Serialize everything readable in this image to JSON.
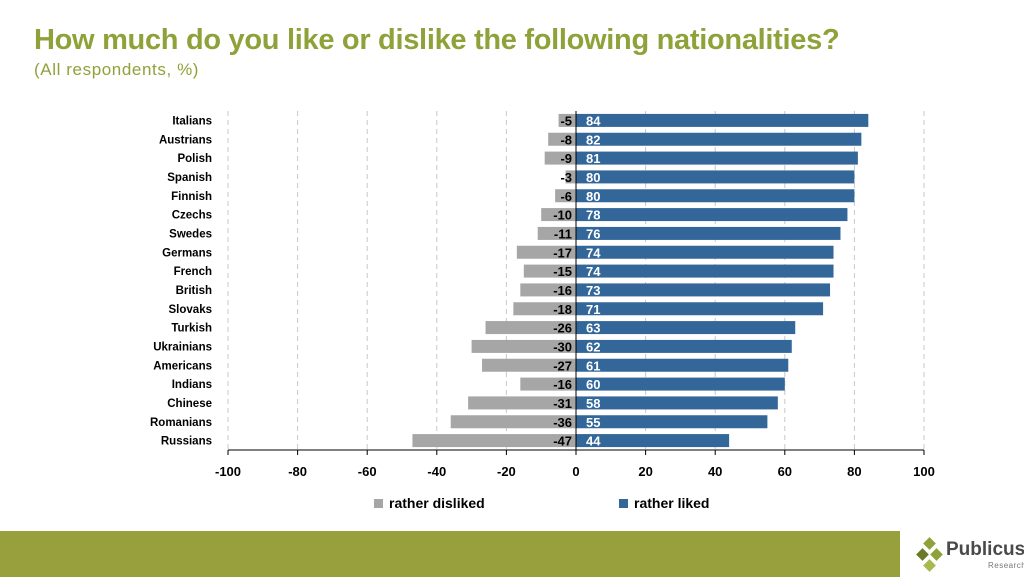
{
  "header": {
    "title": "How much do you like or dislike the following nationalities?",
    "subtitle": "(All respondents, %)"
  },
  "chart_data": {
    "type": "bar",
    "orientation": "horizontal",
    "stacked": "diverging",
    "title": "How much do you like or dislike the following nationalities?",
    "subtitle": "(All respondents, %)",
    "categories": [
      "Italians",
      "Austrians",
      "Polish",
      "Spanish",
      "Finnish",
      "Czechs",
      "Swedes",
      "Germans",
      "French",
      "British",
      "Slovaks",
      "Turkish",
      "Ukrainians",
      "Americans",
      "Indians",
      "Chinese",
      "Romanians",
      "Russians"
    ],
    "series": [
      {
        "name": "rather disliked",
        "color": "#a6a6a6",
        "values": [
          -5,
          -8,
          -9,
          -3,
          -6,
          -10,
          -11,
          -17,
          -15,
          -16,
          -18,
          -26,
          -30,
          -27,
          -16,
          -31,
          -36,
          -47
        ]
      },
      {
        "name": "rather liked",
        "color": "#336699",
        "values": [
          84,
          82,
          81,
          80,
          80,
          78,
          76,
          74,
          74,
          73,
          71,
          63,
          62,
          61,
          60,
          58,
          55,
          44
        ]
      }
    ],
    "xlim": [
      -100,
      100
    ],
    "xticks": [
      -100,
      -80,
      -60,
      -40,
      -20,
      0,
      20,
      40,
      60,
      80,
      100
    ],
    "grid": "vertical dashed",
    "legend": "bottom-center"
  },
  "logo": {
    "name": "Publicus",
    "sub": "Research"
  },
  "colors": {
    "accent": "#8fa23a",
    "footer": "#97a03d",
    "liked": "#336699",
    "disliked": "#a6a6a6"
  }
}
